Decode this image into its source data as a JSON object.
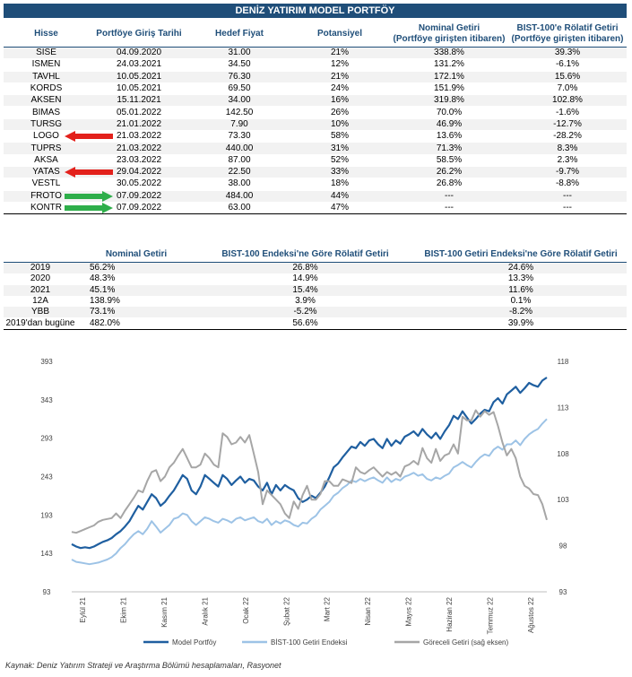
{
  "title": "DENİZ YATIRIM MODEL PORTFÖY",
  "holdings": {
    "headers": [
      "Hisse",
      "Portföye Giriş Tarihi",
      "Hedef Fiyat",
      "Potansiyel",
      "Nominal Getiri\n(Portföye girişten itibaren)",
      "BIST-100'e Rölatif Getiri\n(Portföye girişten itibaren)"
    ],
    "rows": [
      {
        "stock": "SISE",
        "date": "04.09.2020",
        "target": "31.00",
        "potential": "21%",
        "nominal": "338.8%",
        "relative": "39.3%",
        "arrow": ""
      },
      {
        "stock": "ISMEN",
        "date": "24.03.2021",
        "target": "34.50",
        "potential": "12%",
        "nominal": "131.2%",
        "relative": "-6.1%",
        "arrow": ""
      },
      {
        "stock": "TAVHL",
        "date": "10.05.2021",
        "target": "76.30",
        "potential": "21%",
        "nominal": "172.1%",
        "relative": "15.6%",
        "arrow": ""
      },
      {
        "stock": "KORDS",
        "date": "10.05.2021",
        "target": "69.50",
        "potential": "24%",
        "nominal": "151.9%",
        "relative": "7.0%",
        "arrow": ""
      },
      {
        "stock": "AKSEN",
        "date": "15.11.2021",
        "target": "34.00",
        "potential": "16%",
        "nominal": "319.8%",
        "relative": "102.8%",
        "arrow": ""
      },
      {
        "stock": "BIMAS",
        "date": "05.01.2022",
        "target": "142.50",
        "potential": "26%",
        "nominal": "70.0%",
        "relative": "-1.6%",
        "arrow": ""
      },
      {
        "stock": "TURSG",
        "date": "21.01.2022",
        "target": "7.90",
        "potential": "10%",
        "nominal": "46.9%",
        "relative": "-12.7%",
        "arrow": ""
      },
      {
        "stock": "LOGO",
        "date": "21.03.2022",
        "target": "73.30",
        "potential": "58%",
        "nominal": "13.6%",
        "relative": "-28.2%",
        "arrow": "out"
      },
      {
        "stock": "TUPRS",
        "date": "21.03.2022",
        "target": "440.00",
        "potential": "31%",
        "nominal": "71.3%",
        "relative": "8.3%",
        "arrow": ""
      },
      {
        "stock": "AKSA",
        "date": "23.03.2022",
        "target": "87.00",
        "potential": "52%",
        "nominal": "58.5%",
        "relative": "2.3%",
        "arrow": ""
      },
      {
        "stock": "YATAS",
        "date": "29.04.2022",
        "target": "22.50",
        "potential": "33%",
        "nominal": "26.2%",
        "relative": "-9.7%",
        "arrow": "out"
      },
      {
        "stock": "VESTL",
        "date": "30.05.2022",
        "target": "38.00",
        "potential": "18%",
        "nominal": "26.8%",
        "relative": "-8.8%",
        "arrow": ""
      },
      {
        "stock": "FROTO",
        "date": "07.09.2022",
        "target": "484.00",
        "potential": "44%",
        "nominal": "---",
        "relative": "---",
        "arrow": "in"
      },
      {
        "stock": "KONTR",
        "date": "07.09.2022",
        "target": "63.00",
        "potential": "47%",
        "nominal": "---",
        "relative": "---",
        "arrow": "in"
      }
    ]
  },
  "returns": {
    "headers": [
      "",
      "Nominal Getiri",
      "BIST-100 Endeksi'ne Göre Rölatif Getiri",
      "BIST-100 Getiri Endeksi'ne Göre Rölatif Getiri"
    ],
    "rows": [
      {
        "label": "2019",
        "nominal": "56.2%",
        "rel_index": "26.8%",
        "rel_return": "24.6%"
      },
      {
        "label": "2020",
        "nominal": "48.3%",
        "rel_index": "14.9%",
        "rel_return": "13.3%"
      },
      {
        "label": "2021",
        "nominal": "45.1%",
        "rel_index": "15.4%",
        "rel_return": "11.6%"
      },
      {
        "label": "12A",
        "nominal": "138.9%",
        "rel_index": "3.9%",
        "rel_return": "0.1%"
      },
      {
        "label": "YBB",
        "nominal": "73.1%",
        "rel_index": "-5.2%",
        "rel_return": "-8.2%"
      },
      {
        "label": "2019'dan bugüne",
        "nominal": "482.0%",
        "rel_index": "56.6%",
        "rel_return": "39.9%"
      }
    ]
  },
  "chart_data": {
    "type": "line",
    "left_axis": {
      "ticks": [
        "93",
        "143",
        "193",
        "243",
        "293",
        "343",
        "393"
      ],
      "range": [
        93,
        393
      ]
    },
    "right_axis": {
      "ticks": [
        "93",
        "98",
        "103",
        "108",
        "113",
        "118"
      ],
      "range": [
        93,
        118
      ]
    },
    "x_ticks": [
      "Eylül 21",
      "Ekim 21",
      "Kasım 21",
      "Aralık 21",
      "Ocak 22",
      "Şubat 22",
      "Mart 22",
      "Nisan 22",
      "Mayıs 22",
      "Haziran 22",
      "Temmuz 22",
      "Ağustos 22"
    ],
    "series": [
      {
        "name": "Model Portföy",
        "axis": "left",
        "color": "#1f5fa0",
        "values": [
          155,
          152,
          150,
          151,
          150,
          152,
          155,
          158,
          160,
          163,
          168,
          172,
          178,
          185,
          195,
          205,
          200,
          210,
          220,
          215,
          205,
          210,
          218,
          225,
          235,
          245,
          240,
          225,
          220,
          230,
          245,
          240,
          235,
          230,
          245,
          240,
          232,
          238,
          243,
          235,
          240,
          238,
          230,
          225,
          235,
          220,
          232,
          225,
          232,
          228,
          225,
          215,
          210,
          213,
          218,
          215,
          222,
          230,
          242,
          255,
          260,
          268,
          275,
          282,
          280,
          288,
          283,
          290,
          292,
          285,
          280,
          292,
          283,
          290,
          286,
          295,
          298,
          302,
          296,
          305,
          298,
          293,
          300,
          292,
          302,
          310,
          322,
          318,
          328,
          320,
          312,
          318,
          325,
          330,
          328,
          340,
          345,
          338,
          350,
          355,
          360,
          352,
          358,
          365,
          362,
          360,
          368,
          372
        ]
      },
      {
        "name": "BİST-100 Getiri Endeksi",
        "axis": "left",
        "color": "#9dc3e6",
        "values": [
          135,
          132,
          131,
          130,
          129,
          130,
          131,
          133,
          135,
          138,
          143,
          150,
          155,
          162,
          168,
          172,
          168,
          175,
          185,
          178,
          170,
          175,
          180,
          188,
          190,
          195,
          193,
          185,
          180,
          185,
          190,
          188,
          185,
          183,
          188,
          186,
          183,
          188,
          190,
          186,
          188,
          190,
          185,
          183,
          188,
          180,
          185,
          182,
          186,
          184,
          180,
          178,
          183,
          182,
          188,
          192,
          200,
          205,
          210,
          218,
          222,
          228,
          232,
          238,
          236,
          240,
          237,
          240,
          242,
          238,
          235,
          242,
          236,
          240,
          238,
          243,
          245,
          248,
          244,
          246,
          240,
          238,
          242,
          240,
          244,
          247,
          255,
          258,
          262,
          258,
          255,
          262,
          268,
          272,
          270,
          278,
          282,
          278,
          285,
          285,
          290,
          284,
          292,
          298,
          302,
          305,
          312,
          318
        ]
      },
      {
        "name": "Göreceli Getiri (sağ eksen)",
        "axis": "right",
        "color": "#a6a6a6",
        "values": [
          99.5,
          99.4,
          99.6,
          99.8,
          100.0,
          100.2,
          100.6,
          100.8,
          100.9,
          101.0,
          101.5,
          101.0,
          101.8,
          102.5,
          103.2,
          104.0,
          103.8,
          105.0,
          106.0,
          106.2,
          105.0,
          105.5,
          106.5,
          107.0,
          107.8,
          108.5,
          107.5,
          106.5,
          106.5,
          106.8,
          108.0,
          107.5,
          106.8,
          106.5,
          110.2,
          109.8,
          109.0,
          109.2,
          109.8,
          109.2,
          110.0,
          108.0,
          106.0,
          102.5,
          104.0,
          103.5,
          103.0,
          102.5,
          101.5,
          101.0,
          102.8,
          102.0,
          103.5,
          104.5,
          103.0,
          103.0,
          103.6,
          105.0,
          105.0,
          104.5,
          104.5,
          105.2,
          105.0,
          104.8,
          106.5,
          106.0,
          105.8,
          106.2,
          106.5,
          106.0,
          105.5,
          106.0,
          105.7,
          106.0,
          105.5,
          106.6,
          106.8,
          107.2,
          106.8,
          108.6,
          107.5,
          107.0,
          108.5,
          107.2,
          107.8,
          108.0,
          109.0,
          108.0,
          112.0,
          111.6,
          111.6,
          112.7,
          112.0,
          112.6,
          112.2,
          112.5,
          111.0,
          109.2,
          107.8,
          108.5,
          107.5,
          105.5,
          104.5,
          104.2,
          103.6,
          103.5,
          102.5,
          100.8
        ]
      }
    ],
    "legend_position": "bottom"
  },
  "source": "Kaynak: Deniz Yatırım Strateji ve Araştırma Bölümü hesaplamaları, Rasyonet"
}
